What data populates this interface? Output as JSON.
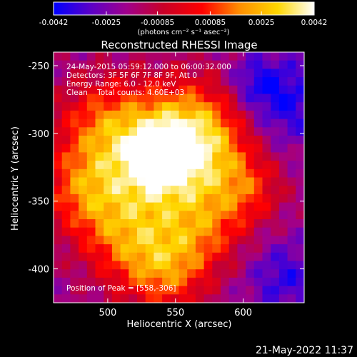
{
  "colorbar": {
    "tick_labels": [
      "-0.0042",
      "-0.0025",
      "-0.00085",
      "0.00085",
      "0.0025",
      "0.0042"
    ],
    "tick_values": [
      -0.0042,
      -0.0025,
      -0.00085,
      0.00085,
      0.0025,
      0.0042
    ],
    "range": [
      -0.0042,
      0.0042
    ],
    "units": "(photons cm⁻² s⁻¹ asec⁻²)",
    "colormap": [
      "#0000ff",
      "#5a00c8",
      "#a0008c",
      "#c80028",
      "#ff0000",
      "#ff8c00",
      "#ffd700",
      "#ffffff"
    ]
  },
  "image": {
    "title": "Reconstructed RHESSI Image",
    "time_range": "24-May-2015 05:59:12.000 to 06:00:32.000",
    "detectors": "Detectors: 3F 5F 6F 7F 8F 9F, Att 0",
    "energy_range": "Energy Range: 6.0 - 12.0 keV",
    "method": "Clean    Total counts: 4.60E+03",
    "peak_label": "Position of Peak = [558,-306]"
  },
  "footer": {
    "timestamp": "21-May-2022 11:37"
  },
  "chart_data": {
    "type": "heatmap",
    "title": "Reconstructed RHESSI Image",
    "xlabel": "Heliocentric X (arcsec)",
    "ylabel": "Heliocentric Y (arcsec)",
    "xlim": [
      460,
      645
    ],
    "ylim": [
      -425,
      -240
    ],
    "x_ticks": [
      500,
      550,
      600
    ],
    "y_ticks": [
      -400,
      -350,
      -300,
      -250
    ],
    "x_tick_labels": [
      "500",
      "550",
      "600"
    ],
    "y_tick_labels": [
      "-400",
      "-350",
      "-300",
      "-250"
    ],
    "peak": {
      "x": 558,
      "y": -306
    },
    "value_range": [
      -0.0042,
      0.0042
    ],
    "colorbar_ticks": [
      -0.0042,
      -0.0025,
      -0.00085,
      0.00085,
      0.0025,
      0.0042
    ]
  }
}
